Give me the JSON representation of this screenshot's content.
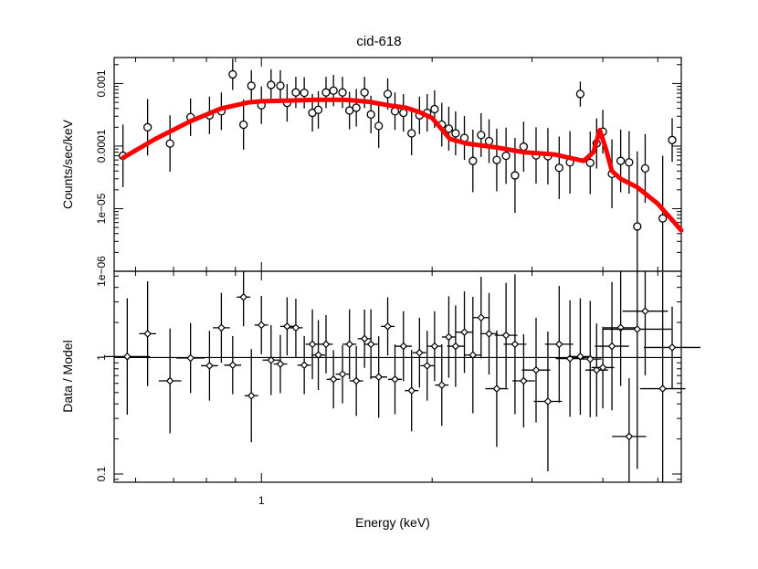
{
  "chart_data": [
    {
      "type": "scatter",
      "title": "cid-618",
      "xlabel": "",
      "ylabel": "Counts/sec/keV",
      "xscale": "log",
      "yscale": "log",
      "xlim": [
        0.55,
        5.5
      ],
      "ylim": [
        1e-06,
        0.0026
      ],
      "yticks": [
        {
          "value": 0.001,
          "label": "0.001"
        },
        {
          "value": 0.0001,
          "label": "0.0001"
        },
        {
          "value": 1e-05,
          "label": "1e−05"
        },
        {
          "value": 1e-06,
          "label": "1e−06"
        }
      ],
      "xticks": [
        {
          "value": 1,
          "label": "1"
        }
      ],
      "series": [
        {
          "name": "data",
          "color": "#000000",
          "marker": "circle",
          "x": [
            0.57,
            0.63,
            0.69,
            0.75,
            0.81,
            0.85,
            0.89,
            0.93,
            0.96,
            1.0,
            1.04,
            1.08,
            1.11,
            1.15,
            1.19,
            1.23,
            1.26,
            1.3,
            1.34,
            1.39,
            1.43,
            1.47,
            1.52,
            1.56,
            1.61,
            1.67,
            1.72,
            1.78,
            1.84,
            1.9,
            1.96,
            2.02,
            2.08,
            2.14,
            2.2,
            2.28,
            2.36,
            2.44,
            2.52,
            2.6,
            2.7,
            2.8,
            2.9,
            3.05,
            3.2,
            3.35,
            3.5,
            3.65,
            3.8,
            3.9,
            4.0,
            4.15,
            4.3,
            4.45,
            4.6,
            4.75,
            5.1,
            5.3
          ],
          "y": [
            7e-05,
            0.0002,
            0.00011,
            0.00029,
            0.00031,
            0.00036,
            0.0014,
            0.00022,
            0.00092,
            0.00045,
            0.00095,
            0.00092,
            0.00049,
            0.00072,
            0.00071,
            0.00034,
            0.00038,
            0.00072,
            0.00077,
            0.00072,
            0.00037,
            0.00041,
            0.00072,
            0.00032,
            0.00021,
            0.00068,
            0.00036,
            0.00034,
            0.00016,
            0.00031,
            0.00034,
            0.00039,
            0.00022,
            0.00019,
            0.00016,
            0.000135,
            5.8e-05,
            0.00015,
            0.00012,
            6e-05,
            7e-05,
            3.4e-05,
            9.8e-05,
            7.1e-05,
            6.9e-05,
            4.5e-05,
            5.5e-05,
            0.00068,
            5.4e-05,
            0.00011,
            0.00017,
            3.6e-05,
            5.8e-05,
            5.5e-05,
            5.2e-06,
            4.4e-05,
            7e-06,
            0.000125
          ],
          "yerr": [
            0.5,
            0.45,
            0.45,
            0.3,
            0.3,
            0.3,
            0.25,
            0.4,
            0.25,
            0.3,
            0.25,
            0.25,
            0.3,
            0.25,
            0.25,
            0.3,
            0.3,
            0.25,
            0.25,
            0.25,
            0.3,
            0.3,
            0.25,
            0.3,
            0.35,
            0.25,
            0.3,
            0.3,
            0.35,
            0.3,
            0.3,
            0.3,
            0.35,
            0.35,
            0.35,
            0.35,
            0.5,
            0.35,
            0.35,
            0.5,
            0.45,
            0.6,
            0.4,
            0.45,
            0.45,
            0.5,
            0.5,
            0.2,
            0.5,
            0.4,
            0.35,
            0.55,
            0.5,
            0.5,
            1.2,
            0.55,
            1.0,
            0.35
          ]
        },
        {
          "name": "model",
          "color": "#ff0000",
          "marker": "line",
          "x": [
            0.57,
            0.65,
            0.75,
            0.85,
            0.95,
            1.0,
            1.1,
            1.25,
            1.4,
            1.55,
            1.7,
            1.8,
            1.9,
            2.0,
            2.15,
            2.3,
            2.6,
            2.9,
            3.3,
            3.7,
            3.85,
            3.95,
            4.05,
            4.15,
            4.3,
            4.6,
            5.0,
            5.5
          ],
          "y": [
            6.5e-05,
            0.00013,
            0.00025,
            0.0004,
            0.0005,
            0.00052,
            0.00053,
            0.00055,
            0.00055,
            0.00051,
            0.00044,
            0.00041,
            0.00035,
            0.00028,
            0.00013,
            0.00011,
            9.5e-05,
            8e-05,
            7.3e-05,
            5.8e-05,
            8e-05,
            0.00018,
            9e-05,
            4e-05,
            3e-05,
            2.2e-05,
            1.2e-05,
            4.5e-06
          ]
        }
      ]
    },
    {
      "type": "scatter",
      "title": "",
      "xlabel": "Energy (keV)",
      "ylabel": "Data / Model",
      "xscale": "log",
      "yscale": "log",
      "xlim": [
        0.55,
        5.5
      ],
      "ylim": [
        0.085,
        5.5
      ],
      "reference_line": 1,
      "yticks": [
        {
          "value": 1,
          "label": "1"
        },
        {
          "value": 0.1,
          "label": "0.1"
        }
      ],
      "xticks": [
        {
          "value": 1,
          "label": "1"
        }
      ],
      "series": [
        {
          "name": "ratio",
          "color": "#000000",
          "marker": "diamond",
          "x": [
            0.58,
            0.63,
            0.69,
            0.75,
            0.81,
            0.85,
            0.89,
            0.93,
            0.96,
            1.0,
            1.04,
            1.08,
            1.11,
            1.15,
            1.19,
            1.23,
            1.26,
            1.3,
            1.34,
            1.39,
            1.43,
            1.47,
            1.52,
            1.56,
            1.61,
            1.67,
            1.72,
            1.78,
            1.84,
            1.9,
            1.96,
            2.02,
            2.08,
            2.14,
            2.2,
            2.28,
            2.36,
            2.44,
            2.52,
            2.6,
            2.7,
            2.8,
            2.9,
            3.05,
            3.2,
            3.35,
            3.5,
            3.65,
            3.8,
            3.9,
            4.0,
            4.15,
            4.3,
            4.45,
            4.6,
            4.75,
            5.1,
            5.3
          ],
          "y": [
            1.02,
            1.6,
            0.63,
            0.99,
            0.85,
            1.8,
            0.86,
            3.3,
            0.47,
            1.9,
            0.95,
            0.88,
            1.85,
            1.8,
            0.86,
            1.3,
            1.05,
            1.3,
            0.65,
            0.72,
            1.3,
            0.63,
            1.45,
            1.3,
            0.68,
            1.85,
            0.65,
            1.25,
            0.52,
            1.1,
            0.85,
            1.25,
            0.58,
            1.5,
            1.25,
            1.65,
            1.05,
            2.2,
            1.6,
            0.54,
            1.55,
            1.3,
            0.63,
            0.78,
            0.42,
            1.3,
            0.98,
            1.02,
            0.97,
            0.78,
            0.82,
            1.25,
            1.8,
            0.21,
            1.75,
            2.5,
            0.54,
            1.22
          ],
          "yerr": [
            0.5,
            0.45,
            0.45,
            0.3,
            0.3,
            0.3,
            0.25,
            0.25,
            0.4,
            0.25,
            0.3,
            0.25,
            0.25,
            0.25,
            0.25,
            0.3,
            0.3,
            0.25,
            0.25,
            0.25,
            0.3,
            0.3,
            0.25,
            0.3,
            0.35,
            0.25,
            0.3,
            0.3,
            0.35,
            0.3,
            0.3,
            0.3,
            0.35,
            0.35,
            0.35,
            0.35,
            0.5,
            0.35,
            0.35,
            0.5,
            0.45,
            0.6,
            0.4,
            0.45,
            0.6,
            0.5,
            0.5,
            0.5,
            0.5,
            0.4,
            0.35,
            0.55,
            0.5,
            0.5,
            1.2,
            0.55,
            1.0,
            0.35
          ],
          "xerr": [
            0.04,
            0.015,
            0.02,
            0.025,
            0.015,
            0.015,
            0.015,
            0.012,
            0.012,
            0.012,
            0.015,
            0.012,
            0.012,
            0.012,
            0.012,
            0.012,
            0.012,
            0.012,
            0.012,
            0.012,
            0.012,
            0.012,
            0.012,
            0.012,
            0.015,
            0.012,
            0.012,
            0.015,
            0.012,
            0.012,
            0.012,
            0.012,
            0.012,
            0.012,
            0.015,
            0.015,
            0.015,
            0.015,
            0.015,
            0.02,
            0.02,
            0.02,
            0.02,
            0.025,
            0.025,
            0.025,
            0.025,
            0.02,
            0.02,
            0.02,
            0.02,
            0.03,
            0.03,
            0.03,
            0.06,
            0.04,
            0.04,
            0.05
          ]
        }
      ]
    }
  ]
}
